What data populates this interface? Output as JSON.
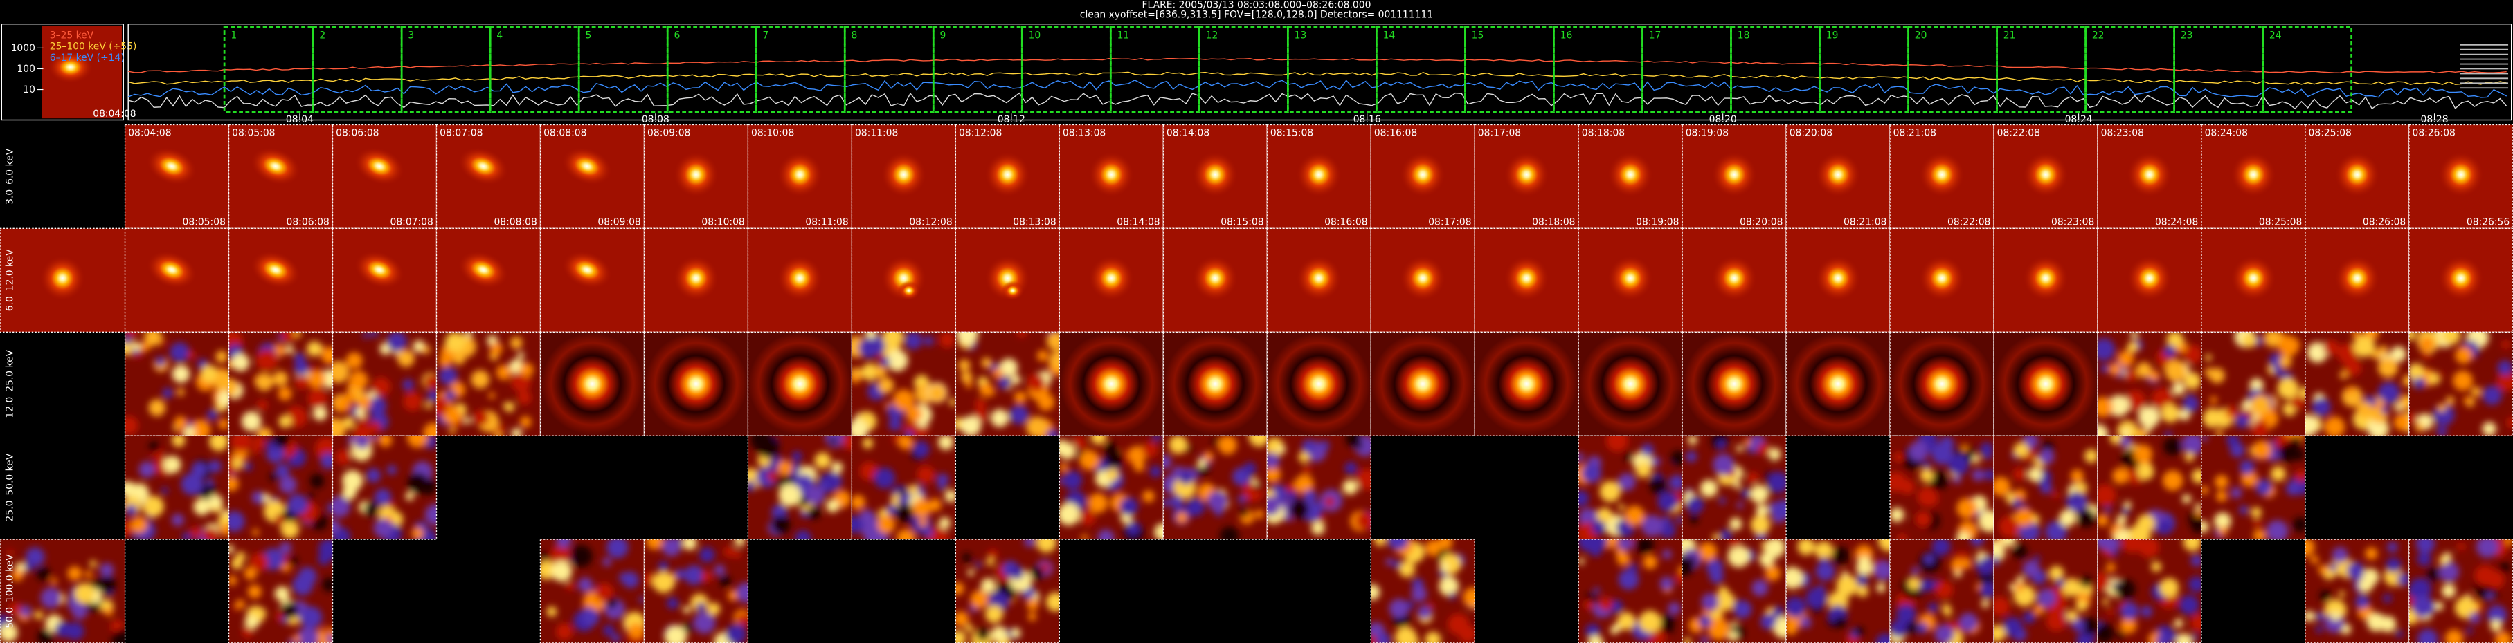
{
  "header": {
    "title": "FLARE: 2005/03/13 08:03:08.000–08:26:08.000",
    "subtitle": "clean    xyoffset=[636.9,313.5]    FOV=[128.0,128.0]    Detectors= 001111111"
  },
  "lightcurve": {
    "legend": [
      {
        "label": "3–25 keV",
        "color": "#ff5a3a"
      },
      {
        "label": "25–100 keV (÷55)",
        "color": "#ffd23a"
      },
      {
        "label": "6–17 keV (÷14)",
        "color": "#3a8cff"
      }
    ],
    "yticks": [
      "1000",
      "100",
      "10"
    ],
    "thumb_time": "08:04:08",
    "xticks": [
      "08:04",
      "08:08",
      "08:12",
      "08:16",
      "08:20",
      "08:24",
      "08:28"
    ],
    "intervals": [
      "1",
      "2",
      "3",
      "4",
      "5",
      "6",
      "7",
      "8",
      "9",
      "10",
      "11",
      "12",
      "13",
      "14",
      "15",
      "16",
      "17",
      "18",
      "19",
      "20",
      "21",
      "22",
      "23",
      "24"
    ]
  },
  "start_times": [
    null,
    "08:04:08",
    "08:05:08",
    "08:06:08",
    "08:07:08",
    "08:08:08",
    "08:09:08",
    "08:10:08",
    "08:11:08",
    "08:12:08",
    "08:13:08",
    "08:14:08",
    "08:15:08",
    "08:16:08",
    "08:17:08",
    "08:18:08",
    "08:19:08",
    "08:20:08",
    "08:21:08",
    "08:22:08",
    "08:23:08",
    "08:24:08",
    "08:25:08",
    "08:26:08"
  ],
  "end_times": [
    null,
    "08:05:08",
    "08:06:08",
    "08:07:08",
    "08:08:08",
    "08:09:08",
    "08:10:08",
    "08:11:08",
    "08:12:08",
    "08:13:08",
    "08:14:08",
    "08:15:08",
    "08:16:08",
    "08:17:08",
    "08:18:08",
    "08:19:08",
    "08:20:08",
    "08:21:08",
    "08:22:08",
    "08:23:08",
    "08:24:08",
    "08:25:08",
    "08:26:08",
    "08:26:56"
  ],
  "rows": [
    {
      "label": "3.0–6.0 keV",
      "present": [
        false,
        true,
        true,
        true,
        true,
        true,
        true,
        true,
        true,
        true,
        true,
        true,
        true,
        true,
        true,
        true,
        true,
        true,
        true,
        true,
        true,
        true,
        true,
        true
      ]
    },
    {
      "label": "6.0–12.0 keV",
      "present": [
        true,
        true,
        true,
        true,
        true,
        true,
        true,
        true,
        true,
        true,
        true,
        true,
        true,
        true,
        true,
        true,
        true,
        true,
        true,
        true,
        true,
        true,
        true,
        true
      ]
    },
    {
      "label": "12.0–25.0 keV",
      "present": [
        false,
        true,
        true,
        true,
        true,
        true,
        true,
        true,
        true,
        true,
        true,
        true,
        true,
        true,
        true,
        true,
        true,
        true,
        true,
        true,
        true,
        true,
        true,
        true
      ]
    },
    {
      "label": "25.0–50.0 keV",
      "present": [
        false,
        true,
        true,
        true,
        false,
        false,
        false,
        true,
        true,
        false,
        true,
        true,
        true,
        false,
        false,
        true,
        true,
        false,
        true,
        true,
        true,
        true,
        false,
        false
      ]
    },
    {
      "label": "50.0–100.0 keV",
      "present": [
        true,
        false,
        true,
        false,
        false,
        true,
        true,
        false,
        false,
        true,
        false,
        false,
        false,
        true,
        false,
        true,
        true,
        true,
        true,
        true,
        true,
        false,
        true,
        true
      ]
    }
  ]
}
